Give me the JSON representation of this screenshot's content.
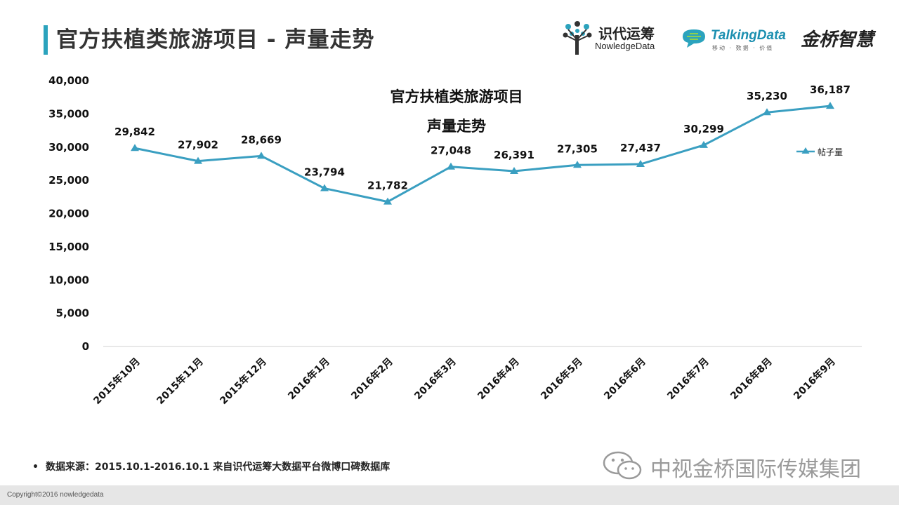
{
  "header": {
    "title": "官方扶植类旅游项目 - 声量走势",
    "logos": {
      "nowledgedata_cn": "识代运筹",
      "nowledgedata_en": "NowledgeData",
      "talkingdata_en": "TalkingData",
      "talkingdata_sub": "移动 · 数据 · 价值",
      "jinqiao": "金桥智慧"
    }
  },
  "chart_data": {
    "type": "line",
    "title_line1": "官方扶植类旅游项目",
    "title_line2": "声量走势",
    "categories": [
      "2015年10月",
      "2015年11月",
      "2015年12月",
      "2016年1月",
      "2016年2月",
      "2016年3月",
      "2016年4月",
      "2016年5月",
      "2016年6月",
      "2016年7月",
      "2016年8月",
      "2016年9月"
    ],
    "series": [
      {
        "name": "帖子量",
        "values": [
          29842,
          27902,
          28669,
          23794,
          21782,
          27048,
          26391,
          27305,
          27437,
          30299,
          35230,
          36187
        ]
      }
    ],
    "data_labels": [
      "29,842",
      "27,902",
      "28,669",
      "23,794",
      "21,782",
      "27,048",
      "26,391",
      "27,305",
      "27,437",
      "30,299",
      "35,230",
      "36,187"
    ],
    "ylim": [
      0,
      40000
    ],
    "yticks": [
      "0",
      "5,000",
      "10,000",
      "15,000",
      "20,000",
      "25,000",
      "30,000",
      "35,000",
      "40,000"
    ],
    "ytick_values": [
      0,
      5000,
      10000,
      15000,
      20000,
      25000,
      30000,
      35000,
      40000
    ],
    "legend_position": "right",
    "grid": false,
    "line_color": "#3a9fc1"
  },
  "footer": {
    "bullet": "•",
    "source": "数据来源：2015.10.1-2016.10.1  来自识代运筹大数据平台微博口碑数据库",
    "watermark": "中视金桥国际传媒集团",
    "copyright": "Copyright©2016 nowledgedata"
  }
}
